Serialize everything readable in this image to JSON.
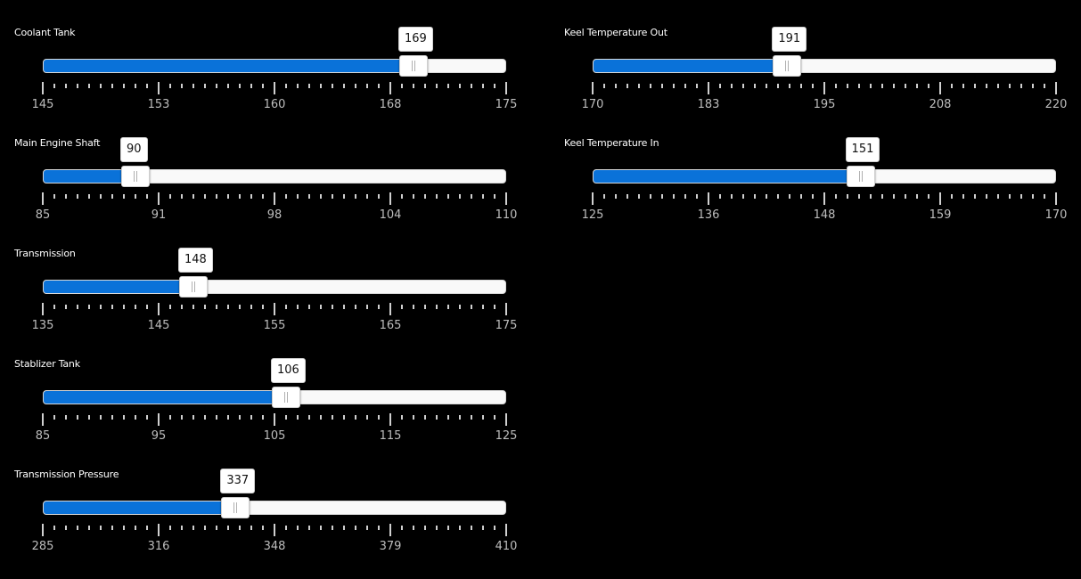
{
  "sliders": [
    {
      "id": "coolant-tank",
      "title": "Coolant Tank",
      "value": "169",
      "value_fraction": 0.8,
      "tick_labels": [
        "145",
        "153",
        "160",
        "168",
        "175"
      ]
    },
    {
      "id": "main-engine-shaft",
      "title": "Main Engine Shaft",
      "value": "90",
      "value_fraction": 0.2,
      "tick_labels": [
        "85",
        "91",
        "98",
        "104",
        "110"
      ]
    },
    {
      "id": "transmission",
      "title": "Transmission",
      "value": "148",
      "value_fraction": 0.325,
      "tick_labels": [
        "135",
        "145",
        "155",
        "165",
        "175"
      ]
    },
    {
      "id": "stablizer-tank",
      "title": "Stablizer Tank",
      "value": "106",
      "value_fraction": 0.525,
      "tick_labels": [
        "85",
        "95",
        "105",
        "115",
        "125"
      ]
    },
    {
      "id": "transmission-pressure",
      "title": "Transmission Pressure",
      "value": "337",
      "value_fraction": 0.416,
      "tick_labels": [
        "285",
        "316",
        "348",
        "379",
        "410"
      ]
    },
    {
      "id": "keel-temperature-out",
      "title": "Keel Temperature Out",
      "value": "191",
      "value_fraction": 0.42,
      "tick_labels": [
        "170",
        "183",
        "195",
        "208",
        "220"
      ]
    },
    {
      "id": "keel-temperature-in",
      "title": "Keel Temperature In",
      "value": "151",
      "value_fraction": 0.578,
      "tick_labels": [
        "125",
        "136",
        "148",
        "159",
        "170"
      ]
    }
  ],
  "colors": {
    "accent": "#0a72d9",
    "track": "#f9f9f9",
    "background": "#000000",
    "tick": "#d0d0d0"
  }
}
